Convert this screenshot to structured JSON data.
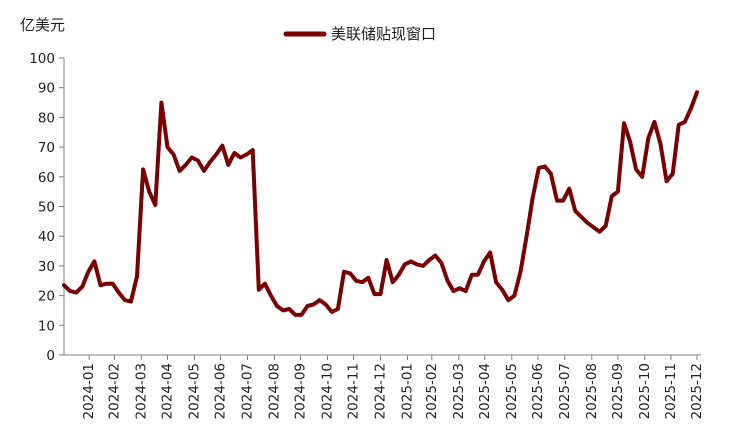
{
  "chart_data": {
    "type": "line",
    "y_unit_label": "亿美元",
    "ylim": [
      0,
      100
    ],
    "yticks": [
      0,
      10,
      20,
      30,
      40,
      50,
      60,
      70,
      80,
      90,
      100
    ],
    "x_tick_labels": [
      "2024-01",
      "2024-02",
      "2024-03",
      "2024-04",
      "2024-05",
      "2024-06",
      "2024-07",
      "2024-08",
      "2024-09",
      "2024-10",
      "2024-11",
      "2024-12",
      "2025-01",
      "2025-02",
      "2025-03",
      "2025-04",
      "2025-05",
      "2025-06",
      "2025-07",
      "2025-08",
      "2025-09",
      "2025-10",
      "2025-11",
      "2025-12"
    ],
    "x_start": "2024-01-03",
    "x_end": "2025-12-31",
    "grid": false,
    "legend_position": "top-center",
    "series": [
      {
        "name": "美联储贴现窗口",
        "color": "#7a0000",
        "points": [
          [
            "2024-01-03",
            23.5
          ],
          [
            "2024-01-10",
            21.5
          ],
          [
            "2024-01-17",
            21.0
          ],
          [
            "2024-01-24",
            23.0
          ],
          [
            "2024-01-31",
            28.0
          ],
          [
            "2024-02-07",
            31.5
          ],
          [
            "2024-02-14",
            23.5
          ],
          [
            "2024-02-21",
            24.0
          ],
          [
            "2024-02-28",
            24.0
          ],
          [
            "2024-03-06",
            21.0
          ],
          [
            "2024-03-13",
            18.5
          ],
          [
            "2024-03-20",
            18.0
          ],
          [
            "2024-03-27",
            26.5
          ],
          [
            "2024-04-03",
            62.5
          ],
          [
            "2024-04-10",
            55.0
          ],
          [
            "2024-04-17",
            50.5
          ],
          [
            "2024-04-24",
            85.0
          ],
          [
            "2024-05-01",
            70.0
          ],
          [
            "2024-05-08",
            67.5
          ],
          [
            "2024-05-15",
            62.0
          ],
          [
            "2024-05-22",
            64.0
          ],
          [
            "2024-05-29",
            66.5
          ],
          [
            "2024-06-05",
            65.5
          ],
          [
            "2024-06-12",
            62.0
          ],
          [
            "2024-06-19",
            65.0
          ],
          [
            "2024-06-26",
            67.5
          ],
          [
            "2024-07-03",
            70.5
          ],
          [
            "2024-07-10",
            64.0
          ],
          [
            "2024-07-17",
            68.0
          ],
          [
            "2024-07-24",
            66.5
          ],
          [
            "2024-07-31",
            67.5
          ],
          [
            "2024-08-07",
            69.0
          ],
          [
            "2024-08-14",
            22.0
          ],
          [
            "2024-08-21",
            24.0
          ],
          [
            "2024-08-28",
            20.0
          ],
          [
            "2024-09-04",
            16.5
          ],
          [
            "2024-09-11",
            15.0
          ],
          [
            "2024-09-18",
            15.5
          ],
          [
            "2024-09-25",
            13.5
          ],
          [
            "2024-10-02",
            13.5
          ],
          [
            "2024-10-09",
            16.5
          ],
          [
            "2024-10-16",
            17.0
          ],
          [
            "2024-10-23",
            18.5
          ],
          [
            "2024-10-30",
            17.0
          ],
          [
            "2024-11-06",
            14.5
          ],
          [
            "2024-11-13",
            15.5
          ],
          [
            "2024-11-20",
            28.0
          ],
          [
            "2024-11-27",
            27.5
          ],
          [
            "2024-12-04",
            25.0
          ],
          [
            "2024-12-11",
            24.5
          ],
          [
            "2024-12-18",
            26.0
          ],
          [
            "2024-12-25",
            20.5
          ],
          [
            "2025-01-01",
            20.5
          ],
          [
            "2025-01-08",
            32.0
          ],
          [
            "2025-01-15",
            24.5
          ],
          [
            "2025-01-22",
            27.0
          ],
          [
            "2025-01-29",
            30.5
          ],
          [
            "2025-02-05",
            31.5
          ],
          [
            "2025-02-12",
            30.5
          ],
          [
            "2025-02-19",
            30.0
          ],
          [
            "2025-02-26",
            32.0
          ],
          [
            "2025-03-05",
            33.5
          ],
          [
            "2025-03-12",
            31.0
          ],
          [
            "2025-03-19",
            25.0
          ],
          [
            "2025-03-26",
            21.5
          ],
          [
            "2025-04-02",
            22.5
          ],
          [
            "2025-04-09",
            21.5
          ],
          [
            "2025-04-16",
            27.0
          ],
          [
            "2025-04-23",
            27.0
          ],
          [
            "2025-04-30",
            31.5
          ],
          [
            "2025-05-07",
            34.5
          ],
          [
            "2025-05-14",
            24.5
          ],
          [
            "2025-05-21",
            22.0
          ],
          [
            "2025-05-28",
            18.5
          ],
          [
            "2025-06-04",
            20.0
          ],
          [
            "2025-06-11",
            28.0
          ],
          [
            "2025-06-18",
            40.0
          ],
          [
            "2025-06-25",
            53.0
          ],
          [
            "2025-07-02",
            63.0
          ],
          [
            "2025-07-09",
            63.5
          ],
          [
            "2025-07-16",
            61.0
          ],
          [
            "2025-07-23",
            52.0
          ],
          [
            "2025-07-30",
            52.0
          ],
          [
            "2025-08-06",
            56.0
          ],
          [
            "2025-08-13",
            48.5
          ],
          [
            "2025-08-20",
            46.5
          ],
          [
            "2025-08-27",
            44.5
          ],
          [
            "2025-09-03",
            43.0
          ],
          [
            "2025-09-10",
            41.5
          ],
          [
            "2025-09-17",
            43.5
          ],
          [
            "2025-09-24",
            53.5
          ],
          [
            "2025-10-01",
            55.0
          ],
          [
            "2025-10-08",
            78.0
          ],
          [
            "2025-10-15",
            72.0
          ],
          [
            "2025-10-22",
            62.5
          ],
          [
            "2025-10-29",
            60.0
          ],
          [
            "2025-11-05",
            73.0
          ],
          [
            "2025-11-12",
            78.5
          ],
          [
            "2025-11-19",
            71.0
          ],
          [
            "2025-11-26",
            58.5
          ],
          [
            "2025-12-03",
            61.0
          ],
          [
            "2025-12-10",
            77.5
          ],
          [
            "2025-12-17",
            78.5
          ],
          [
            "2025-12-24",
            83.0
          ],
          [
            "2025-12-31",
            88.5
          ]
        ]
      }
    ]
  }
}
